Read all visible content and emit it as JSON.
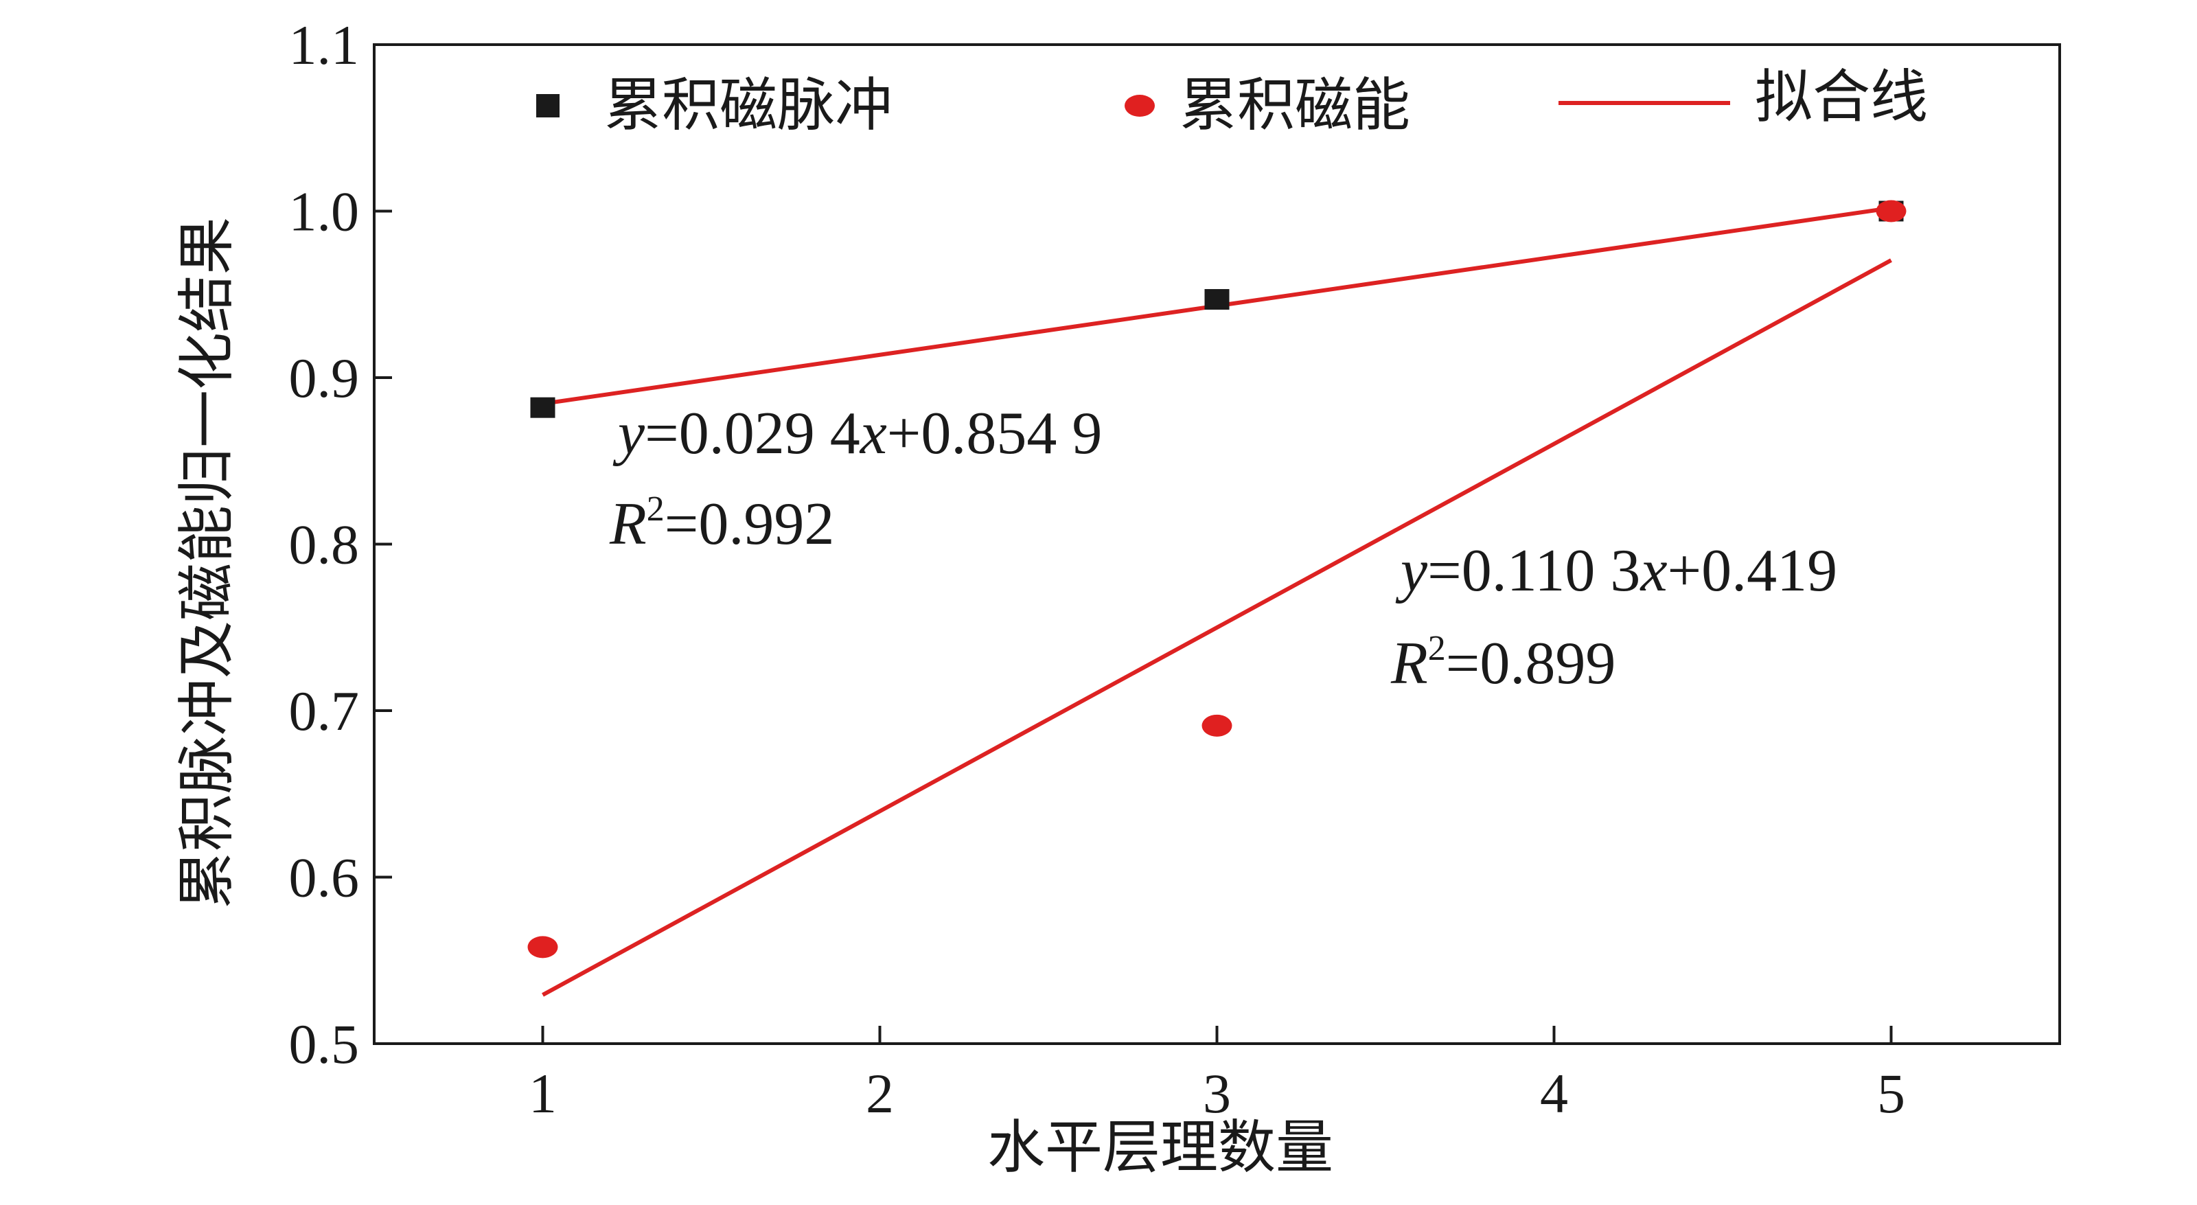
{
  "chart_data": {
    "type": "scatter",
    "xlabel": "水平层理数量",
    "ylabel": "累积脉冲及磁能归一化结果",
    "xlim": [
      0.5,
      5.5
    ],
    "ylim": [
      0.5,
      1.1
    ],
    "xticks": [
      "1",
      "2",
      "3",
      "4",
      "5"
    ],
    "yticks": [
      "0.5",
      "0.6",
      "0.7",
      "0.8",
      "0.9",
      "1.0",
      "1.1"
    ],
    "legend": {
      "placement": "top",
      "entries": [
        "累积磁脉冲",
        "累积磁能",
        "拟合线"
      ]
    },
    "series": [
      {
        "name": "累积磁脉冲",
        "marker": "square",
        "color": "#1a1a1a",
        "x": [
          1,
          3,
          5
        ],
        "y": [
          0.882,
          0.947,
          1.0
        ],
        "fit": {
          "slope": 0.0294,
          "intercept": 0.8549,
          "x_range": [
            1,
            5
          ]
        }
      },
      {
        "name": "累积磁能",
        "marker": "circle",
        "color": "#e02020",
        "x": [
          1,
          3,
          5
        ],
        "y": [
          0.558,
          0.691,
          1.0
        ],
        "fit": {
          "slope": 0.1103,
          "intercept": 0.419,
          "x_range": [
            1,
            5
          ]
        }
      }
    ],
    "fit_color": "#dd2222",
    "annotations": [
      {
        "y_var": "y",
        "eq": "=0.029 4",
        "x_var": "x",
        "rest": "+0.854 9",
        "r_var": "R",
        "sup": "2",
        "r_val": "=0.992"
      },
      {
        "y_var": "y",
        "eq": "=0.110 3",
        "x_var": "x",
        "rest": "+0.419",
        "r_var": "R",
        "sup": "2",
        "r_val": "=0.899"
      }
    ]
  }
}
